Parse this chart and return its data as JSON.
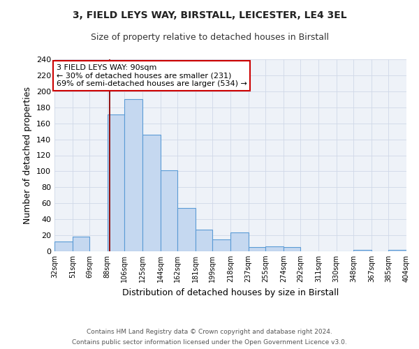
{
  "title": "3, FIELD LEYS WAY, BIRSTALL, LEICESTER, LE4 3EL",
  "subtitle": "Size of property relative to detached houses in Birstall",
  "xlabel": "Distribution of detached houses by size in Birstall",
  "ylabel": "Number of detached properties",
  "bar_edges": [
    32,
    51,
    69,
    88,
    106,
    125,
    144,
    162,
    181,
    199,
    218,
    237,
    255,
    274,
    292,
    311,
    330,
    348,
    367,
    385,
    404
  ],
  "bar_heights": [
    12,
    18,
    0,
    171,
    190,
    146,
    101,
    54,
    27,
    15,
    24,
    5,
    6,
    5,
    0,
    0,
    0,
    2,
    0,
    2,
    0
  ],
  "bar_color": "#c5d8f0",
  "bar_edge_color": "#5b9bd5",
  "property_size": 90,
  "property_line_color": "#8b0000",
  "ylim": [
    0,
    240
  ],
  "yticks": [
    0,
    20,
    40,
    60,
    80,
    100,
    120,
    140,
    160,
    180,
    200,
    220,
    240
  ],
  "grid_color": "#d0d8e8",
  "annotation_title": "3 FIELD LEYS WAY: 90sqm",
  "annotation_line1": "← 30% of detached houses are smaller (231)",
  "annotation_line2": "69% of semi-detached houses are larger (534) →",
  "annotation_box_color": "#ffffff",
  "annotation_box_edge_color": "#cc0000",
  "footer_line1": "Contains HM Land Registry data © Crown copyright and database right 2024.",
  "footer_line2": "Contains public sector information licensed under the Open Government Licence v3.0.",
  "bg_color": "#ffffff",
  "plot_bg_color": "#eef2f8"
}
